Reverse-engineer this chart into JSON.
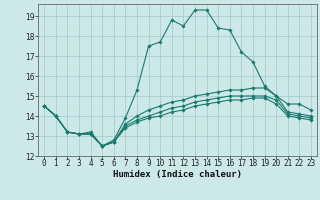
{
  "title": "",
  "xlabel": "Humidex (Indice chaleur)",
  "ylabel": "",
  "background_color": "#cde8e8",
  "grid_color": "#a8cccc",
  "line_color": "#1a7a6e",
  "xlim": [
    -0.5,
    23.5
  ],
  "ylim": [
    12,
    19.6
  ],
  "yticks": [
    12,
    13,
    14,
    15,
    16,
    17,
    18,
    19
  ],
  "xticks": [
    0,
    1,
    2,
    3,
    4,
    5,
    6,
    7,
    8,
    9,
    10,
    11,
    12,
    13,
    14,
    15,
    16,
    17,
    18,
    19,
    20,
    21,
    22,
    23
  ],
  "series": [
    [
      14.5,
      14.0,
      13.2,
      13.1,
      13.2,
      12.5,
      12.8,
      13.9,
      15.3,
      17.5,
      17.7,
      18.8,
      18.5,
      19.3,
      19.3,
      18.4,
      18.3,
      17.2,
      16.7,
      15.5,
      15.0,
      14.6,
      14.6,
      14.3
    ],
    [
      14.5,
      14.0,
      13.2,
      13.1,
      13.1,
      12.5,
      12.7,
      13.6,
      14.0,
      14.3,
      14.5,
      14.7,
      14.8,
      15.0,
      15.1,
      15.2,
      15.3,
      15.3,
      15.4,
      15.4,
      15.0,
      14.2,
      14.1,
      14.0
    ],
    [
      14.5,
      14.0,
      13.2,
      13.1,
      13.1,
      12.5,
      12.7,
      13.5,
      13.8,
      14.0,
      14.2,
      14.4,
      14.5,
      14.7,
      14.8,
      14.9,
      15.0,
      15.0,
      15.0,
      15.0,
      14.8,
      14.1,
      14.0,
      13.9
    ],
    [
      14.5,
      14.0,
      13.2,
      13.1,
      13.1,
      12.5,
      12.7,
      13.4,
      13.7,
      13.9,
      14.0,
      14.2,
      14.3,
      14.5,
      14.6,
      14.7,
      14.8,
      14.8,
      14.9,
      14.9,
      14.6,
      14.0,
      13.9,
      13.8
    ]
  ],
  "tick_fontsize": 5.5,
  "xlabel_fontsize": 6.5,
  "marker_size": 1.8,
  "line_width": 0.8
}
